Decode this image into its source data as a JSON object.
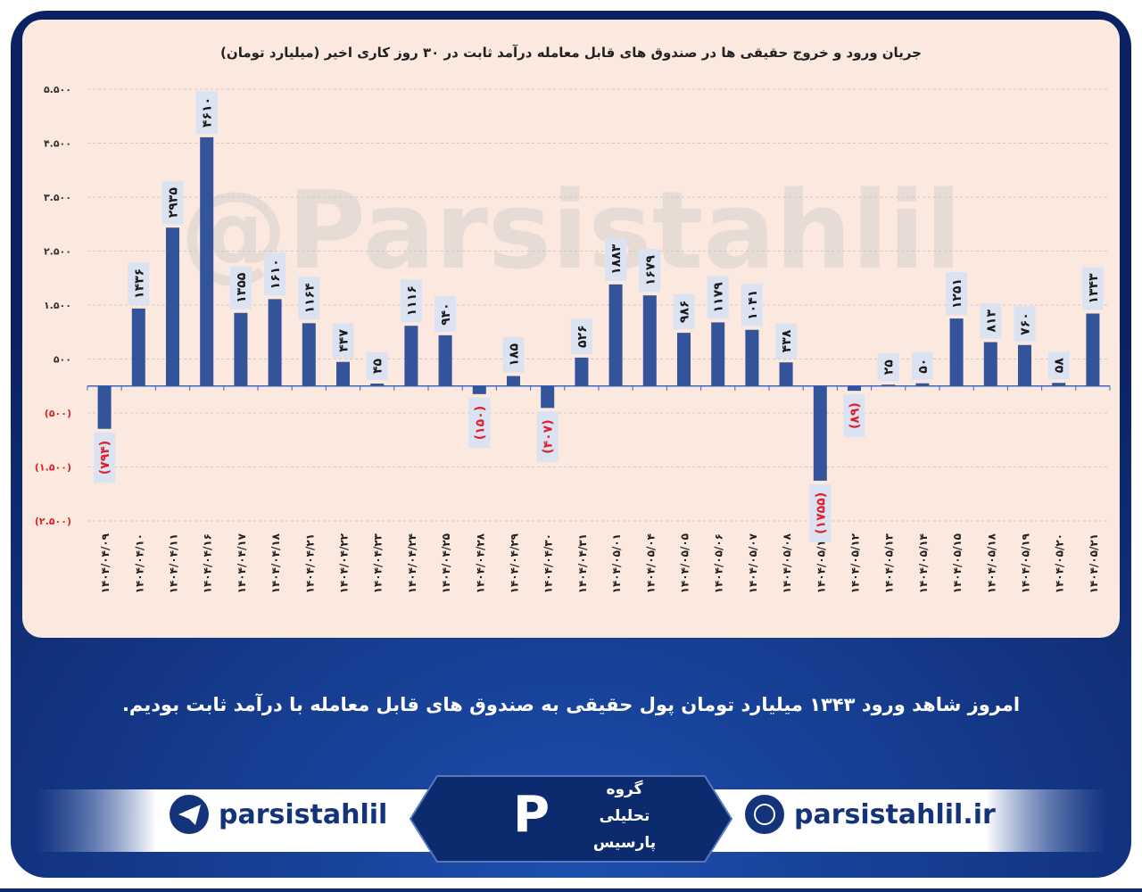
{
  "chart_data": {
    "type": "bar",
    "title": "جریان ورود و خروج حقیقی ها در صندوق های قابل معامله درآمد ثابت در ۳۰ روز کاری اخیر (میلیارد تومان)",
    "watermark": "@Parsistahlil",
    "categories": [
      "۱۴۰۴/۰۴/۰۹",
      "۱۴۰۴/۰۴/۱۰",
      "۱۴۰۴/۰۴/۱۱",
      "۱۴۰۴/۰۴/۱۶",
      "۱۴۰۴/۰۴/۱۷",
      "۱۴۰۴/۰۴/۱۸",
      "۱۴۰۴/۰۴/۲۱",
      "۱۴۰۴/۰۴/۲۲",
      "۱۴۰۴/۰۴/۲۳",
      "۱۴۰۴/۰۴/۲۴",
      "۱۴۰۴/۰۴/۲۵",
      "۱۴۰۴/۰۴/۲۸",
      "۱۴۰۴/۰۴/۲۹",
      "۱۴۰۴/۰۴/۳۰",
      "۱۴۰۴/۰۴/۳۱",
      "۱۴۰۴/۰۵/۰۱",
      "۱۴۰۴/۰۵/۰۴",
      "۱۴۰۴/۰۵/۰۵",
      "۱۴۰۴/۰۵/۰۶",
      "۱۴۰۴/۰۵/۰۷",
      "۱۴۰۴/۰۵/۰۸",
      "۱۴۰۴/۰۵/۱۱",
      "۱۴۰۴/۰۵/۱۲",
      "۱۴۰۴/۰۵/۱۳",
      "۱۴۰۴/۰۵/۱۴",
      "۱۴۰۴/۰۵/۱۵",
      "۱۴۰۴/۰۵/۱۸",
      "۱۴۰۴/۰۵/۱۹",
      "۱۴۰۴/۰۵/۲۰",
      "۱۴۰۴/۰۵/۲۱"
    ],
    "values": [
      -794,
      1436,
      2935,
      4610,
      1355,
      1610,
      1164,
      447,
      45,
      1116,
      940,
      -150,
      185,
      -407,
      526,
      1883,
      1679,
      986,
      1179,
      1041,
      438,
      -1755,
      -89,
      25,
      50,
      1251,
      813,
      760,
      58,
      1343
    ],
    "value_labels": [
      "(۷۹۴)",
      "۱۴۳۶",
      "۲۹۳۵",
      "۴۶۱۰",
      "۱۳۵۵",
      "۱۶۱۰",
      "۱۱۶۴",
      "۴۴۷",
      "۴۵",
      "۱۱۱۶",
      "۹۴۰",
      "(۱۵۰)",
      "۱۸۵",
      "(۴۰۷)",
      "۵۲۶",
      "۱۸۸۳",
      "۱۶۷۹",
      "۹۸۶",
      "۱۱۷۹",
      "۱۰۴۱",
      "۴۳۸",
      "(۱۷۵۵)",
      "(۸۹)",
      "۲۵",
      "۵۰",
      "۱۲۵۱",
      "۸۱۳",
      "۷۶۰",
      "۵۸",
      "۱۳۴۳"
    ],
    "color": "#33539a",
    "negative_label_color": "#e0202a",
    "ylim": [
      -2600,
      5600
    ],
    "yticks": [
      {
        "value": 5500,
        "label": "۵.۵۰۰"
      },
      {
        "value": 4500,
        "label": "۴.۵۰۰"
      },
      {
        "value": 3500,
        "label": "۳.۵۰۰"
      },
      {
        "value": 2500,
        "label": "۲.۵۰۰"
      },
      {
        "value": 1500,
        "label": "۱.۵۰۰"
      },
      {
        "value": 500,
        "label": "۵۰۰"
      },
      {
        "value": -500,
        "label": "(۵۰۰)"
      },
      {
        "value": -1500,
        "label": "(۱.۵۰۰)"
      },
      {
        "value": -2500,
        "label": "(۲.۵۰۰)"
      }
    ],
    "grid": true
  },
  "caption": "امروز شاهد ورود ۱۳۴۳ میلیارد تومان پول حقیقی به صندوق های قابل معامله با درآمد ثابت بودیم.",
  "footer": {
    "telegram": "parsistahlil",
    "website": "parsistahlil.ir",
    "logo_lines": [
      "گروه",
      "تحلیلی",
      "پارسیس"
    ]
  }
}
